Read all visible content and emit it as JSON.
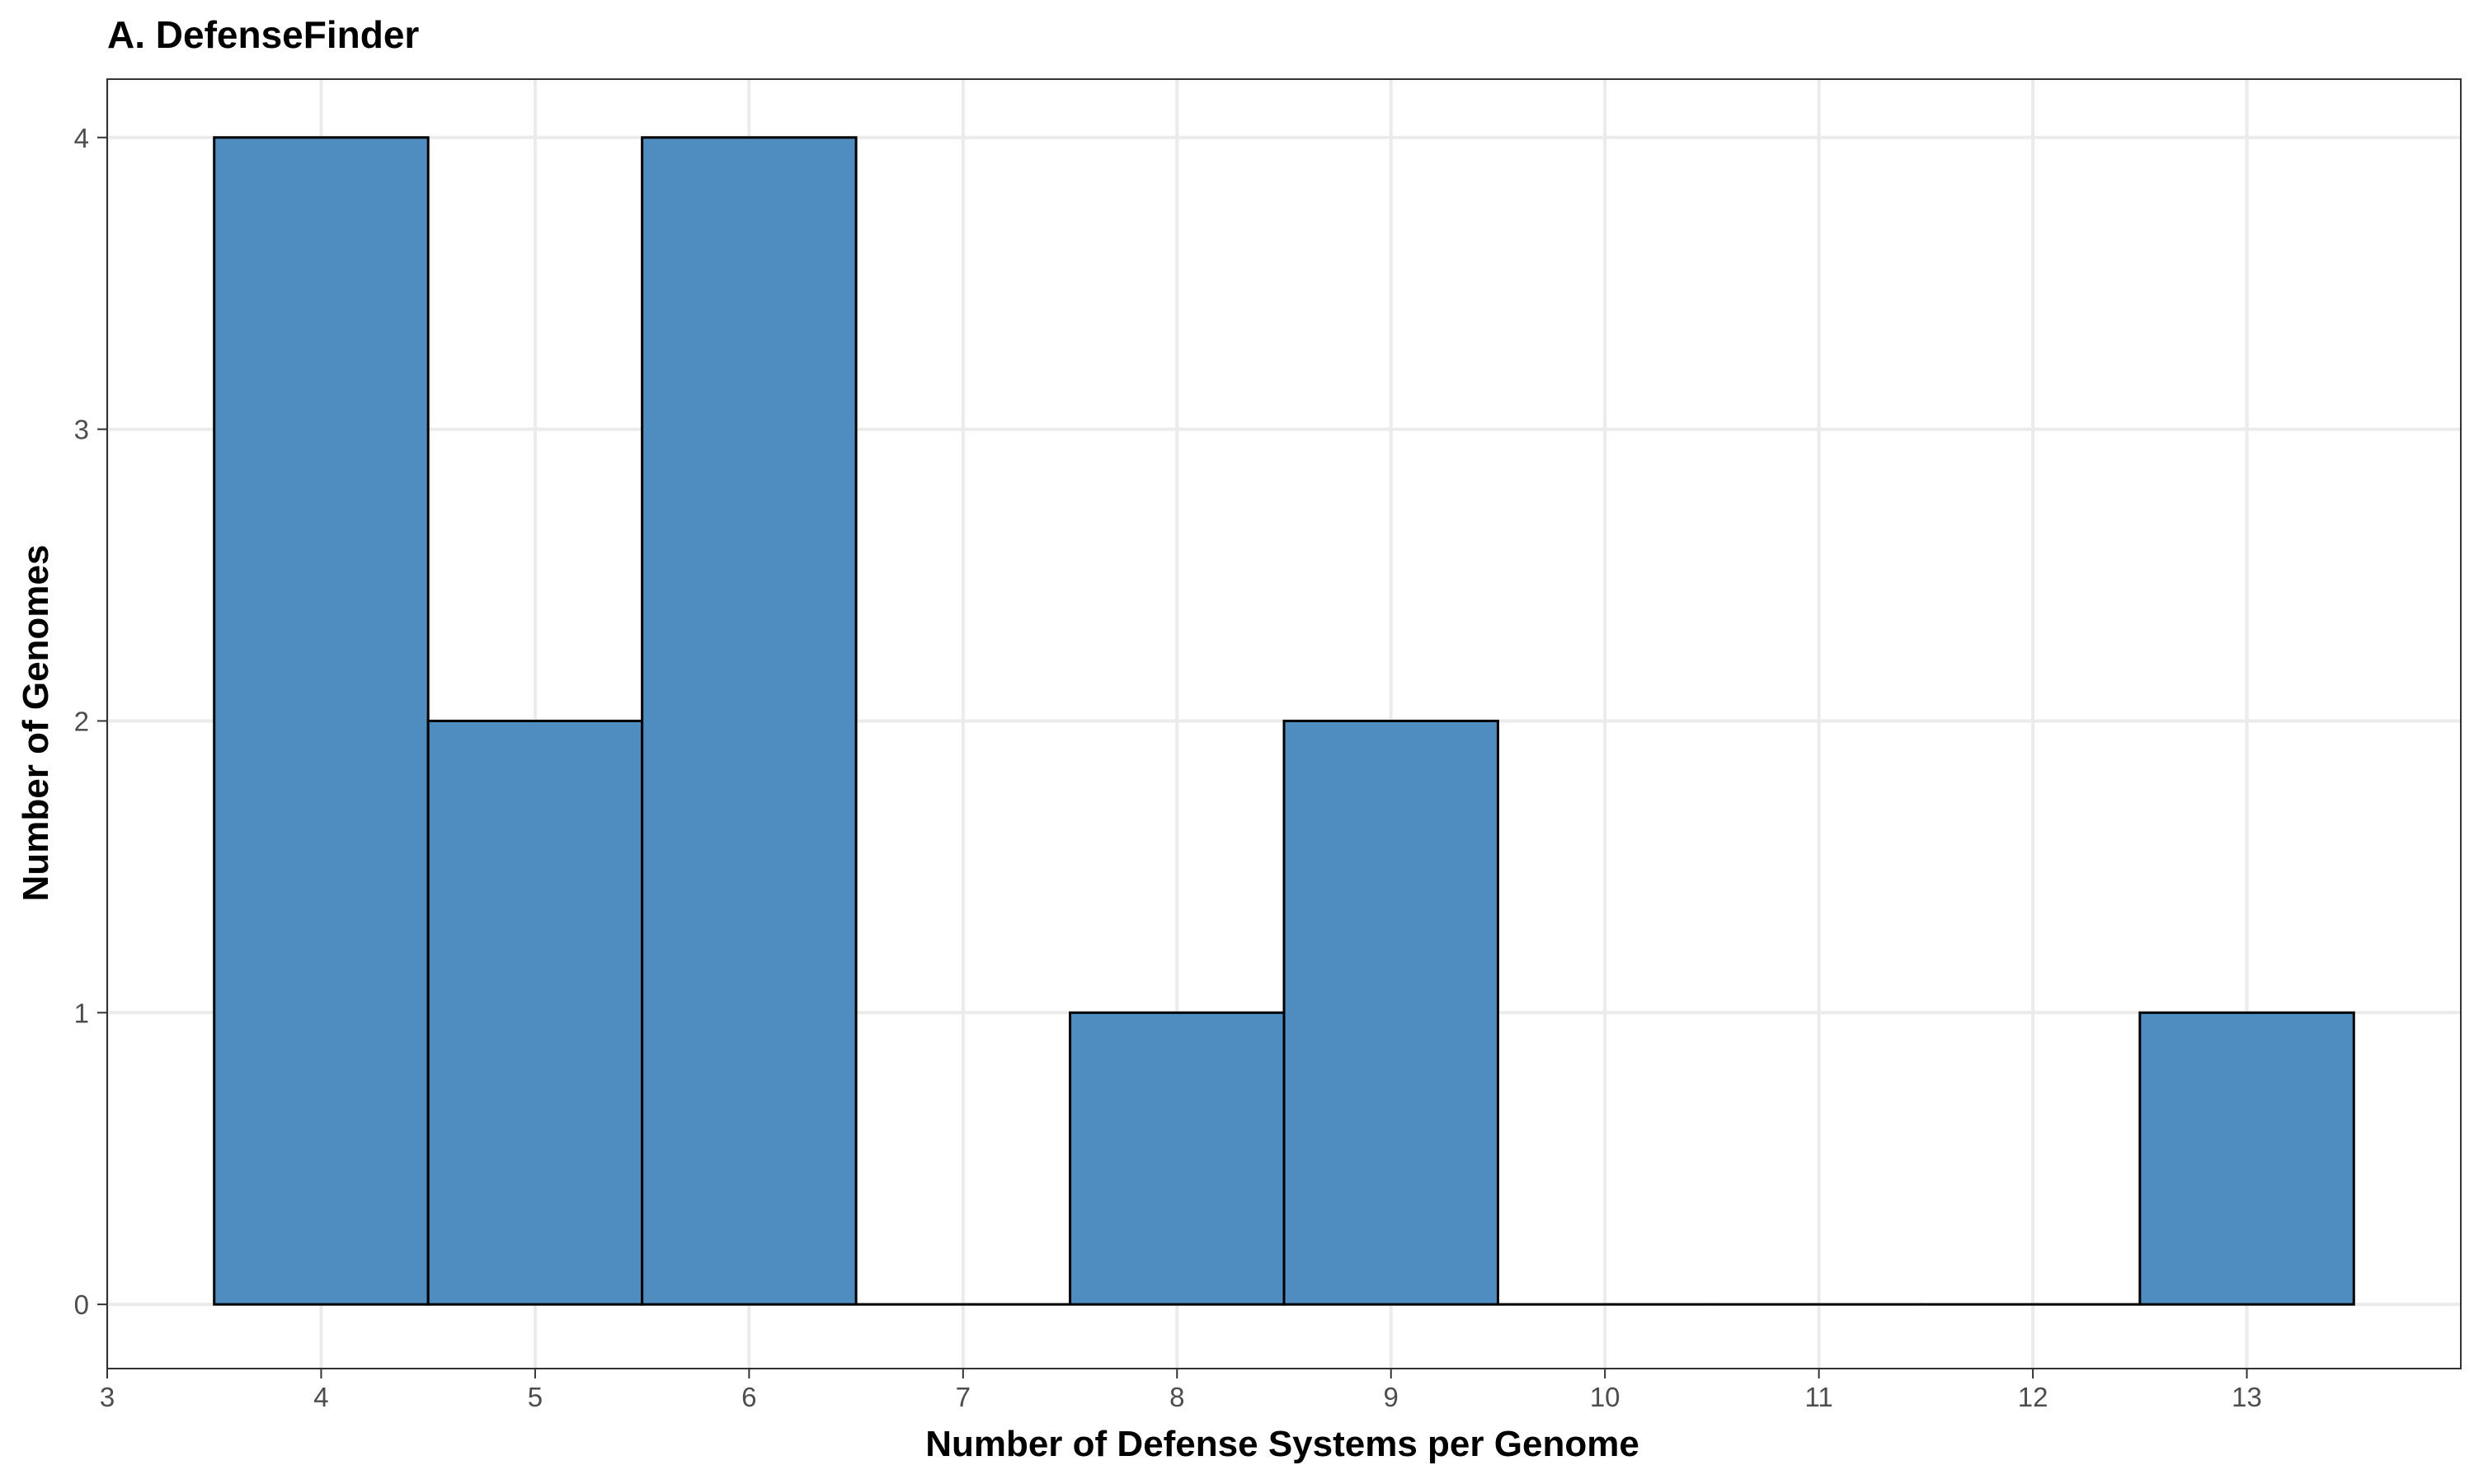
{
  "chart_data": {
    "type": "bar",
    "title": "A. DefenseFinder",
    "xlabel": "Number of Defense Systems per Genome",
    "ylabel": "Number of Genomes",
    "categories": [
      "4",
      "5",
      "6",
      "7",
      "8",
      "9",
      "10",
      "11",
      "12",
      "13"
    ],
    "x": [
      4,
      5,
      6,
      7,
      8,
      9,
      10,
      11,
      12,
      13
    ],
    "values": [
      4,
      2,
      4,
      0,
      1,
      2,
      0,
      0,
      0,
      1
    ],
    "bin_width": 1,
    "xlim": [
      3,
      14
    ],
    "ylim": [
      -0.22,
      4.2
    ],
    "xticks": [
      "3",
      "4",
      "5",
      "6",
      "7",
      "8",
      "9",
      "10",
      "11",
      "12",
      "13"
    ],
    "yticks": [
      "0",
      "1",
      "2",
      "3",
      "4"
    ],
    "grid": true,
    "bar_color": "#4f8cc0",
    "bar_edge_color": "#000000"
  }
}
